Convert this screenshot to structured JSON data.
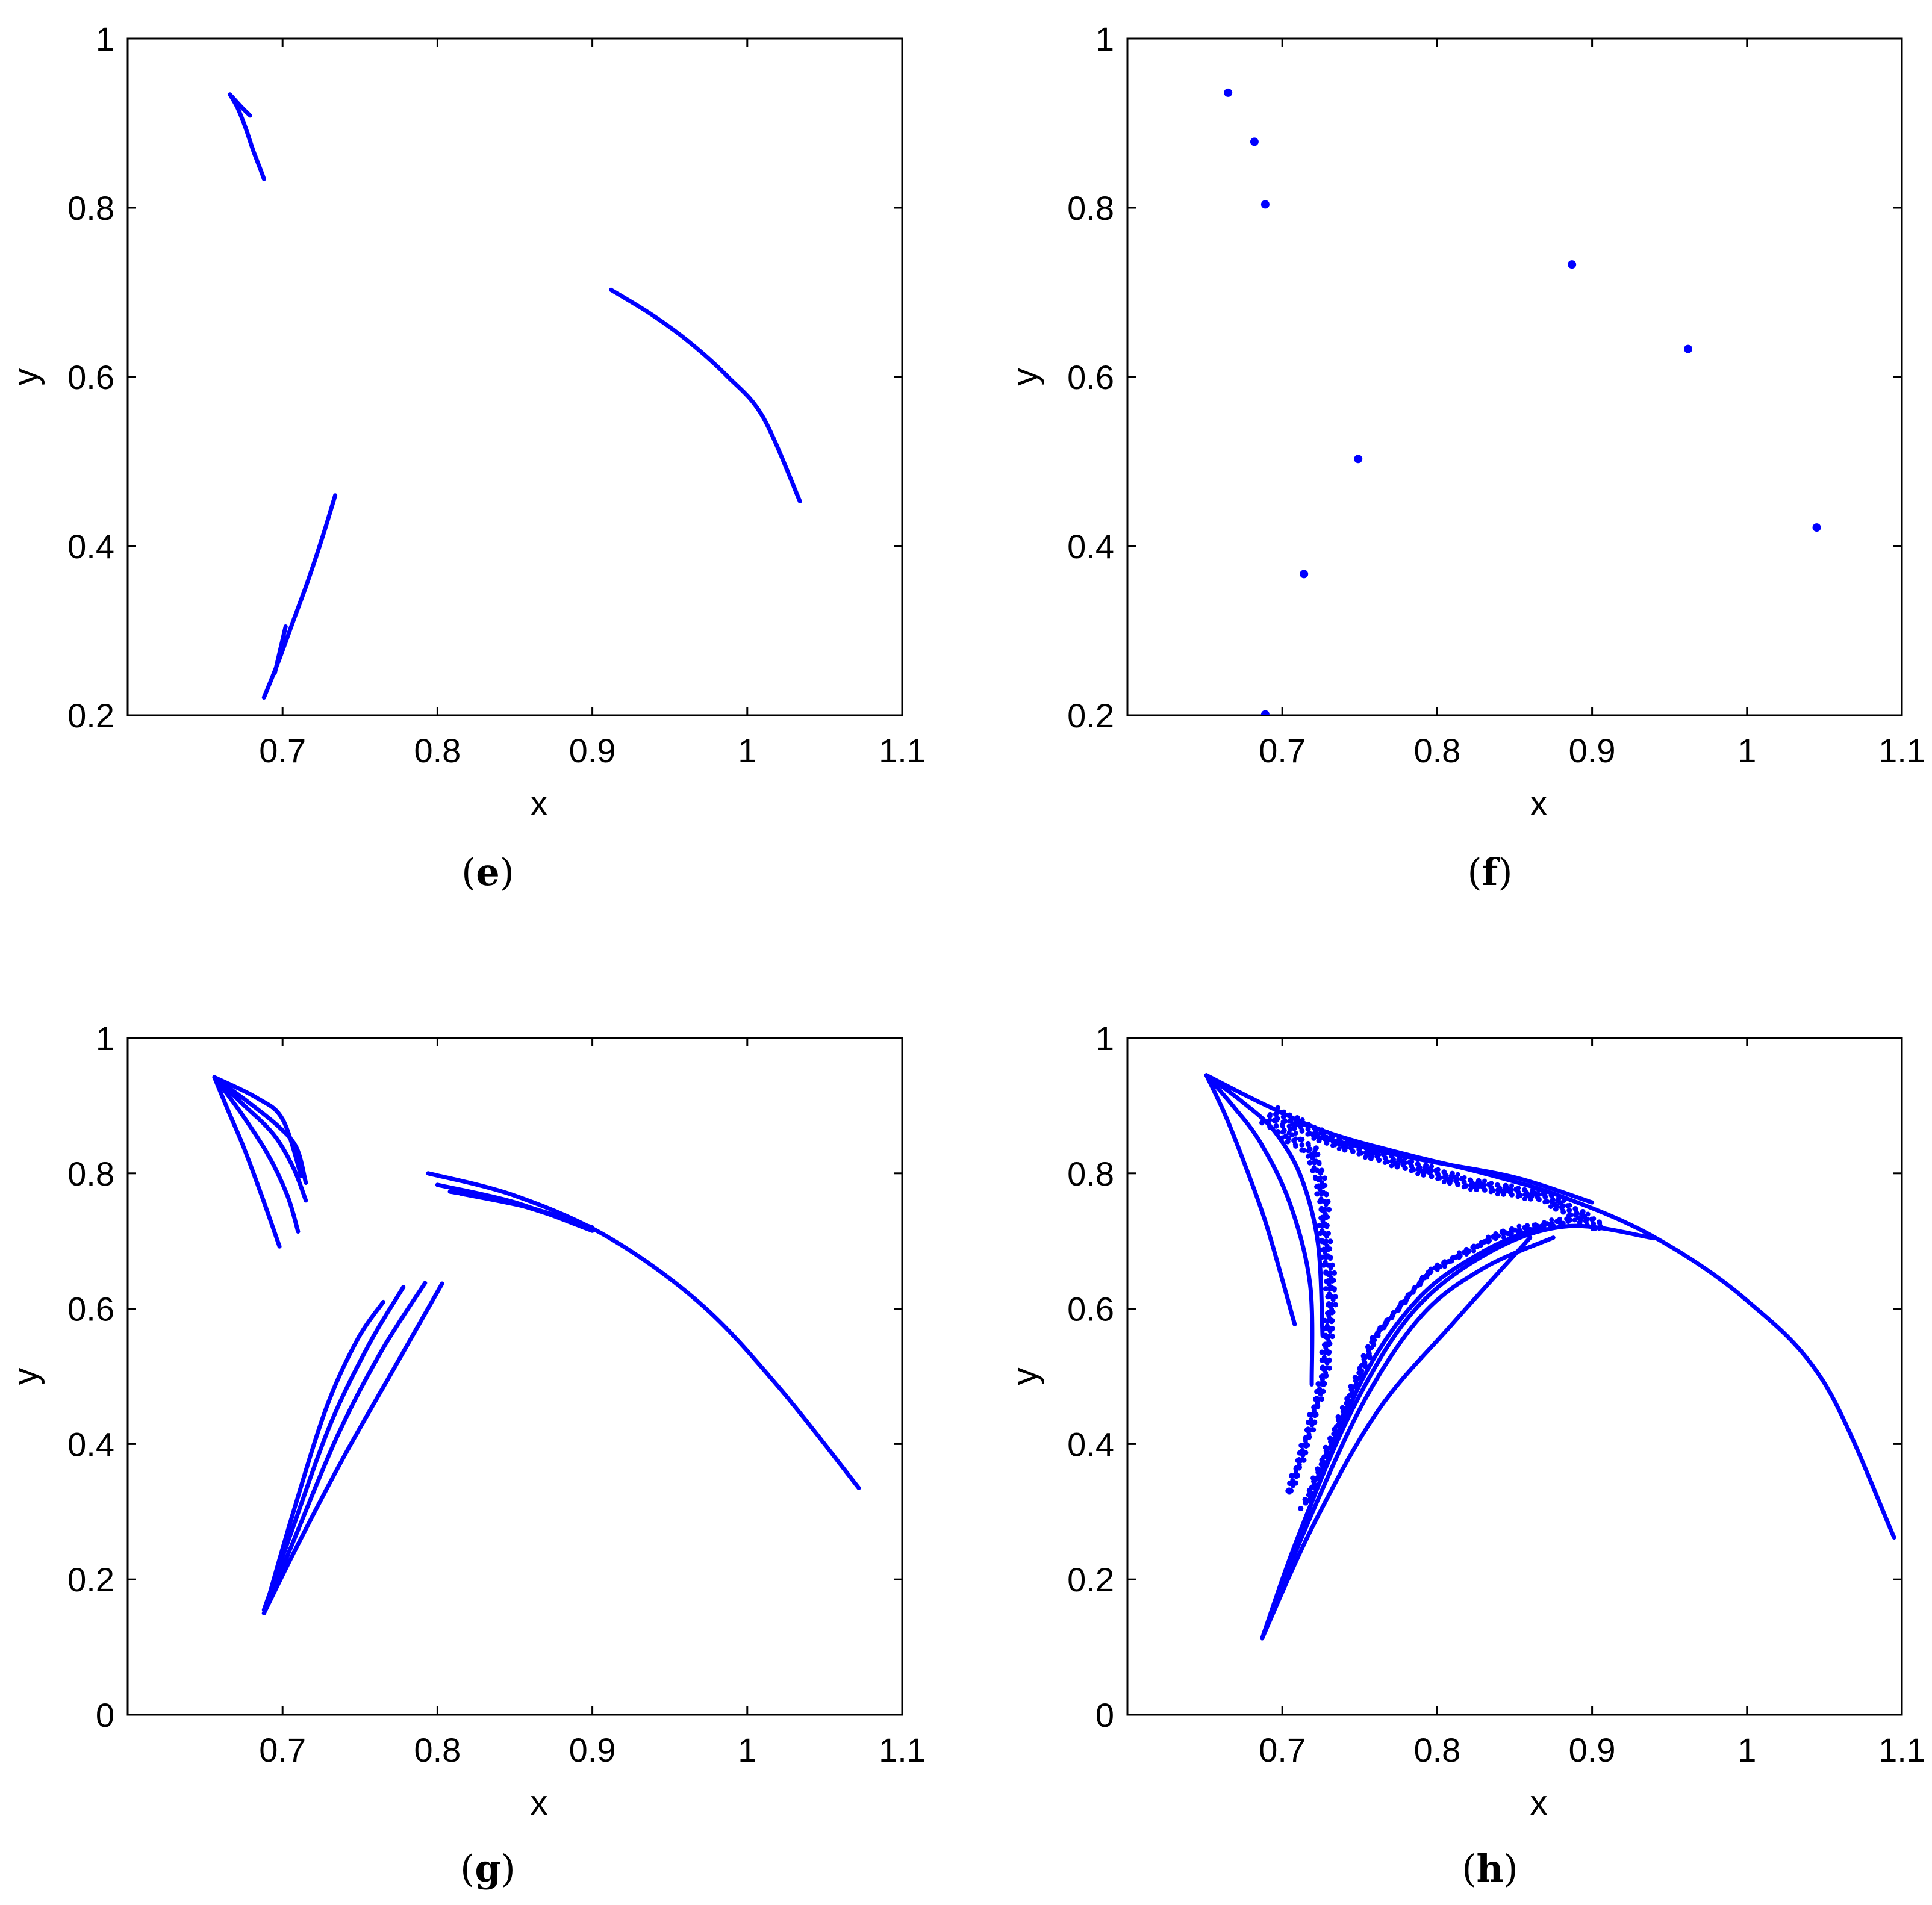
{
  "figure": {
    "panels": [
      "e",
      "f",
      "g",
      "h"
    ]
  },
  "colors": {
    "series": "#0000ff",
    "axes": "#000000"
  },
  "chart_data": [
    {
      "id": "e",
      "caption": "e",
      "type": "scatter",
      "marker": "dense-curve",
      "xlabel": "x",
      "ylabel": "y",
      "xlim": [
        0.6,
        1.1
      ],
      "ylim": [
        0.2,
        1.0
      ],
      "xticks": [
        0.7,
        0.8,
        0.9,
        1,
        1.1
      ],
      "xtick_labels": [
        "0.7",
        "0.8",
        "0.9",
        "1",
        "1.1"
      ],
      "yticks": [
        0.2,
        0.4,
        0.6,
        0.8,
        1
      ],
      "ytick_labels": [
        "0.2",
        "0.4",
        "0.6",
        "0.8",
        "1"
      ],
      "grid": false,
      "series": [
        {
          "points": [
            [
              0.666,
              0.934
            ],
            [
              0.671,
              0.918
            ],
            [
              0.676,
              0.895
            ],
            [
              0.681,
              0.868
            ],
            [
              0.686,
              0.844
            ],
            [
              0.688,
              0.834
            ]
          ]
        },
        {
          "points": [
            [
              0.667,
              0.932
            ],
            [
              0.674,
              0.918
            ],
            [
              0.679,
              0.909
            ]
          ]
        },
        {
          "points": [
            [
              0.688,
              0.221
            ],
            [
              0.697,
              0.262
            ],
            [
              0.707,
              0.312
            ],
            [
              0.716,
              0.357
            ],
            [
              0.726,
              0.412
            ],
            [
              0.734,
              0.46
            ]
          ]
        },
        {
          "points": [
            [
              0.695,
              0.25
            ],
            [
              0.702,
              0.305
            ]
          ]
        },
        {
          "points": [
            [
              0.912,
              0.703
            ],
            [
              0.938,
              0.674
            ],
            [
              0.962,
              0.642
            ],
            [
              0.987,
              0.601
            ],
            [
              1.01,
              0.553
            ],
            [
              1.034,
              0.453
            ]
          ]
        }
      ]
    },
    {
      "id": "f",
      "caption": "f",
      "type": "scatter",
      "marker": "point",
      "xlabel": "x",
      "ylabel": "y",
      "xlim": [
        0.6,
        1.1
      ],
      "ylim": [
        0.2,
        1.0
      ],
      "xticks": [
        0.7,
        0.8,
        0.9,
        1,
        1.1
      ],
      "xtick_labels": [
        "0.7",
        "0.8",
        "0.9",
        "1",
        "1.1"
      ],
      "yticks": [
        0.2,
        0.4,
        0.6,
        0.8,
        1
      ],
      "ytick_labels": [
        "0.2",
        "0.4",
        "0.6",
        "0.8",
        "1"
      ],
      "grid": false,
      "series": [
        {
          "points": [
            [
              0.665,
              0.936
            ],
            [
              0.682,
              0.878
            ],
            [
              0.689,
              0.804
            ],
            [
              0.887,
              0.733
            ],
            [
              0.962,
              0.633
            ],
            [
              0.749,
              0.503
            ],
            [
              1.045,
              0.422
            ],
            [
              0.714,
              0.367
            ],
            [
              0.689,
              0.201
            ]
          ]
        }
      ]
    },
    {
      "id": "g",
      "caption": "g",
      "type": "scatter",
      "marker": "dense-curve",
      "xlabel": "x",
      "ylabel": "y",
      "xlim": [
        0.6,
        1.1
      ],
      "ylim": [
        0,
        1.0
      ],
      "xticks": [
        0.7,
        0.8,
        0.9,
        1,
        1.1
      ],
      "xtick_labels": [
        "0.7",
        "0.8",
        "0.9",
        "1",
        "1.1"
      ],
      "yticks": [
        0,
        0.2,
        0.4,
        0.6,
        0.8,
        1
      ],
      "ytick_labels": [
        "0",
        "0.2",
        "0.4",
        "0.6",
        "0.8",
        "1"
      ],
      "grid": false,
      "series": [
        {
          "points": [
            [
              0.656,
              0.942
            ],
            [
              0.665,
              0.892
            ],
            [
              0.675,
              0.838
            ],
            [
              0.687,
              0.764
            ],
            [
              0.698,
              0.692
            ]
          ]
        },
        {
          "points": [
            [
              0.656,
              0.942
            ],
            [
              0.672,
              0.893
            ],
            [
              0.69,
              0.83
            ],
            [
              0.703,
              0.768
            ],
            [
              0.71,
              0.714
            ]
          ]
        },
        {
          "points": [
            [
              0.656,
              0.942
            ],
            [
              0.674,
              0.903
            ],
            [
              0.694,
              0.858
            ],
            [
              0.707,
              0.808
            ],
            [
              0.715,
              0.76
            ]
          ]
        },
        {
          "points": [
            [
              0.656,
              0.942
            ],
            [
              0.678,
              0.905
            ],
            [
              0.697,
              0.87
            ],
            [
              0.709,
              0.838
            ],
            [
              0.715,
              0.786
            ]
          ]
        },
        {
          "points": [
            [
              0.656,
              0.942
            ],
            [
              0.683,
              0.912
            ],
            [
              0.7,
              0.88
            ],
            [
              0.712,
              0.796
            ]
          ]
        },
        {
          "points": [
            [
              0.688,
              0.15
            ],
            [
              0.71,
              0.252
            ],
            [
              0.74,
              0.383
            ],
            [
              0.772,
              0.512
            ],
            [
              0.803,
              0.637
            ]
          ]
        },
        {
          "points": [
            [
              0.688,
              0.15
            ],
            [
              0.708,
              0.262
            ],
            [
              0.736,
              0.415
            ],
            [
              0.764,
              0.538
            ],
            [
              0.792,
              0.638
            ]
          ]
        },
        {
          "points": [
            [
              0.688,
              0.155
            ],
            [
              0.706,
              0.272
            ],
            [
              0.731,
              0.43
            ],
            [
              0.756,
              0.548
            ],
            [
              0.778,
              0.632
            ]
          ]
        },
        {
          "points": [
            [
              0.69,
              0.165
            ],
            [
              0.706,
              0.292
            ],
            [
              0.728,
              0.452
            ],
            [
              0.748,
              0.553
            ],
            [
              0.765,
              0.61
            ]
          ]
        },
        {
          "points": [
            [
              0.794,
              0.8
            ],
            [
              0.85,
              0.767
            ],
            [
              0.91,
              0.706
            ],
            [
              0.97,
              0.607
            ],
            [
              1.02,
              0.485
            ],
            [
              1.072,
              0.335
            ]
          ]
        },
        {
          "points": [
            [
              0.8,
              0.783
            ],
            [
              0.85,
              0.757
            ],
            [
              0.9,
              0.715
            ]
          ]
        },
        {
          "points": [
            [
              0.808,
              0.773
            ],
            [
              0.85,
              0.755
            ],
            [
              0.9,
              0.718
            ]
          ]
        },
        {
          "points": [
            [
              0.815,
              0.77
            ],
            [
              0.86,
              0.749
            ],
            [
              0.9,
              0.72
            ]
          ]
        }
      ]
    },
    {
      "id": "h",
      "caption": "h",
      "type": "scatter",
      "marker": "dense-curve",
      "xlabel": "x",
      "ylabel": "y",
      "xlim": [
        0.6,
        1.1
      ],
      "ylim": [
        0,
        1.0
      ],
      "xticks": [
        0.7,
        0.8,
        0.9,
        1,
        1.1
      ],
      "xtick_labels": [
        "0.7",
        "0.8",
        "0.9",
        "1",
        "1.1"
      ],
      "yticks": [
        0,
        0.2,
        0.4,
        0.6,
        0.8,
        1
      ],
      "ytick_labels": [
        "0",
        "0.2",
        "0.4",
        "0.6",
        "0.8",
        "1"
      ],
      "grid": false,
      "series": [
        {
          "points": [
            [
              0.651,
              0.945
            ],
            [
              0.663,
              0.887
            ],
            [
              0.675,
              0.818
            ],
            [
              0.69,
              0.722
            ],
            [
              0.708,
              0.577
            ]
          ]
        },
        {
          "points": [
            [
              0.651,
              0.945
            ],
            [
              0.668,
              0.9
            ],
            [
              0.686,
              0.845
            ],
            [
              0.705,
              0.755
            ],
            [
              0.718,
              0.635
            ],
            [
              0.719,
              0.488
            ]
          ]
        },
        {
          "points": [
            [
              0.651,
              0.945
            ],
            [
              0.674,
              0.906
            ],
            [
              0.695,
              0.862
            ],
            [
              0.712,
              0.795
            ],
            [
              0.723,
              0.697
            ],
            [
              0.726,
              0.56
            ]
          ]
        },
        {
          "points": [
            [
              0.651,
              0.945
            ],
            [
              0.69,
              0.9
            ],
            [
              0.73,
              0.86
            ],
            [
              0.78,
              0.828
            ],
            [
              0.83,
              0.8
            ],
            [
              0.88,
              0.766
            ],
            [
              0.94,
              0.706
            ],
            [
              1.0,
              0.612
            ],
            [
              1.05,
              0.49
            ],
            [
              1.095,
              0.262
            ]
          ]
        },
        {
          "points": [
            [
              0.72,
              0.855
            ],
            [
              0.79,
              0.82
            ],
            [
              0.85,
              0.794
            ],
            [
              0.9,
              0.757
            ]
          ]
        },
        {
          "points": [
            [
              0.687,
              0.113
            ],
            [
              0.71,
              0.262
            ],
            [
              0.745,
              0.45
            ],
            [
              0.785,
              0.597
            ],
            [
              0.835,
              0.685
            ],
            [
              0.885,
              0.722
            ],
            [
              0.94,
              0.704
            ]
          ]
        },
        {
          "points": [
            [
              0.687,
              0.113
            ],
            [
              0.72,
              0.28
            ],
            [
              0.762,
              0.45
            ],
            [
              0.81,
              0.578
            ],
            [
              0.86,
              0.705
            ]
          ]
        },
        {
          "points": [
            [
              0.688,
              0.12
            ],
            [
              0.714,
              0.27
            ],
            [
              0.752,
              0.46
            ],
            [
              0.79,
              0.59
            ],
            [
              0.83,
              0.66
            ],
            [
              0.875,
              0.705
            ]
          ]
        },
        {
          "points": [
            [
              0.692,
              0.14
            ],
            [
              0.725,
              0.35
            ],
            [
              0.755,
              0.51
            ],
            [
              0.79,
              0.62
            ],
            [
              0.83,
              0.685
            ],
            [
              0.87,
              0.725
            ]
          ]
        }
      ],
      "scatter_bands": [
        {
          "points": [
            [
              0.69,
              0.88
            ],
            [
              0.72,
              0.83
            ],
            [
              0.727,
              0.76
            ],
            [
              0.727,
              0.71
            ],
            [
              0.732,
              0.62
            ],
            [
              0.727,
              0.5
            ],
            [
              0.715,
              0.4
            ],
            [
              0.705,
              0.33
            ]
          ]
        },
        {
          "points": [
            [
              0.695,
              0.89
            ],
            [
              0.73,
              0.85
            ],
            [
              0.77,
              0.82
            ],
            [
              0.82,
              0.785
            ],
            [
              0.87,
              0.765
            ],
            [
              0.905,
              0.72
            ]
          ]
        },
        {
          "points": [
            [
              0.715,
              0.31
            ],
            [
              0.74,
              0.45
            ],
            [
              0.76,
              0.56
            ],
            [
              0.795,
              0.655
            ],
            [
              0.84,
              0.71
            ],
            [
              0.885,
              0.73
            ]
          ]
        }
      ]
    }
  ]
}
